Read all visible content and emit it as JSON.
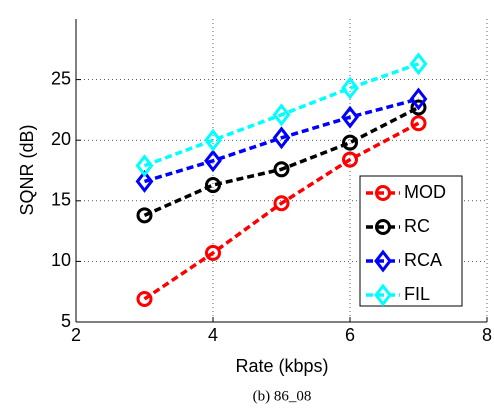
{
  "chart_data": {
    "type": "line",
    "xlabel": "Rate (kbps)",
    "ylabel": "SQNR (dB)",
    "caption": "(b) 86_08",
    "x": [
      3,
      4,
      5,
      6,
      7
    ],
    "series": [
      {
        "name": "MOD",
        "color": "#ff0000",
        "marker": "circle",
        "values": [
          6.9,
          10.7,
          14.8,
          18.4,
          21.4
        ]
      },
      {
        "name": "RC",
        "color": "#000000",
        "marker": "circle",
        "values": [
          13.8,
          16.3,
          17.6,
          19.8,
          22.7
        ]
      },
      {
        "name": "RCA",
        "color": "#0000ff",
        "marker": "diamond",
        "values": [
          16.6,
          18.3,
          20.2,
          21.9,
          23.4
        ]
      },
      {
        "name": "FIL",
        "color": "#00ffff",
        "marker": "diamond",
        "values": [
          17.9,
          20.0,
          22.1,
          24.3,
          26.3
        ]
      }
    ],
    "xlim": [
      2,
      8
    ],
    "xticks": [
      2,
      4,
      6,
      8
    ],
    "ylim": [
      5,
      30
    ],
    "yticks": [
      5,
      10,
      15,
      20,
      25
    ],
    "grid": true,
    "legend": "lower right"
  }
}
